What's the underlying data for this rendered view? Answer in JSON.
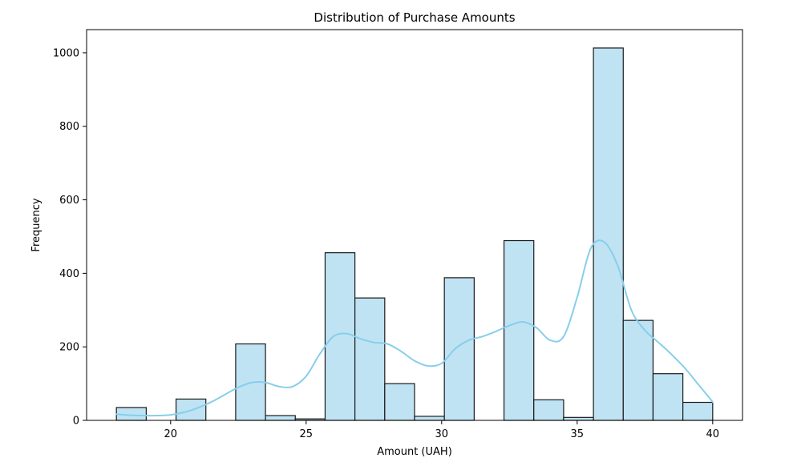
{
  "chart_data": {
    "type": "bar",
    "title": "Distribution of Purchase Amounts",
    "xlabel": "Amount (UAH)",
    "ylabel": "Frequency",
    "xlim": [
      16.9,
      41.1
    ],
    "ylim": [
      0,
      1063
    ],
    "xticks": [
      20,
      25,
      30,
      35,
      40
    ],
    "yticks": [
      0,
      200,
      400,
      600,
      800,
      1000
    ],
    "grid": false,
    "bar_fill": "#bfe3f3",
    "bar_edge": "#1a1a1a",
    "kde_color": "#87ceeb",
    "bins": [
      {
        "x0": 18.0,
        "x1": 19.1,
        "count": 35
      },
      {
        "x0": 19.1,
        "x1": 20.2,
        "count": 0
      },
      {
        "x0": 20.2,
        "x1": 21.3,
        "count": 58
      },
      {
        "x0": 21.3,
        "x1": 22.4,
        "count": 0
      },
      {
        "x0": 22.4,
        "x1": 23.5,
        "count": 208
      },
      {
        "x0": 23.5,
        "x1": 24.6,
        "count": 13
      },
      {
        "x0": 24.6,
        "x1": 25.7,
        "count": 4
      },
      {
        "x0": 25.7,
        "x1": 26.8,
        "count": 456
      },
      {
        "x0": 26.8,
        "x1": 27.9,
        "count": 333
      },
      {
        "x0": 27.9,
        "x1": 29.0,
        "count": 100
      },
      {
        "x0": 29.0,
        "x1": 30.1,
        "count": 11
      },
      {
        "x0": 30.1,
        "x1": 31.2,
        "count": 388
      },
      {
        "x0": 31.2,
        "x1": 32.3,
        "count": 0
      },
      {
        "x0": 32.3,
        "x1": 33.4,
        "count": 489
      },
      {
        "x0": 33.4,
        "x1": 34.5,
        "count": 56
      },
      {
        "x0": 34.5,
        "x1": 35.6,
        "count": 8
      },
      {
        "x0": 35.6,
        "x1": 36.7,
        "count": 1013
      },
      {
        "x0": 36.7,
        "x1": 37.8,
        "count": 272
      },
      {
        "x0": 37.8,
        "x1": 38.9,
        "count": 127
      },
      {
        "x0": 38.9,
        "x1": 40.0,
        "count": 49
      }
    ],
    "kde": {
      "x": [
        18.0,
        18.5,
        19.0,
        19.5,
        20.0,
        20.5,
        21.0,
        21.5,
        22.0,
        22.5,
        23.0,
        23.5,
        24.0,
        24.5,
        25.0,
        25.5,
        26.0,
        26.5,
        27.0,
        27.5,
        28.0,
        28.5,
        29.0,
        29.5,
        30.0,
        30.5,
        31.0,
        31.5,
        32.0,
        32.5,
        33.0,
        33.5,
        34.0,
        34.5,
        35.0,
        35.5,
        36.0,
        36.5,
        37.0,
        37.5,
        38.0,
        38.5,
        39.0,
        39.5,
        40.0
      ],
      "y": [
        17,
        14,
        13,
        13,
        15,
        22,
        34,
        50,
        70,
        90,
        103,
        103,
        92,
        92,
        120,
        180,
        228,
        236,
        222,
        212,
        208,
        188,
        162,
        148,
        155,
        195,
        218,
        228,
        242,
        258,
        268,
        252,
        218,
        228,
        335,
        468,
        485,
        420,
        300,
        245,
        212,
        178,
        140,
        95,
        50
      ]
    }
  }
}
